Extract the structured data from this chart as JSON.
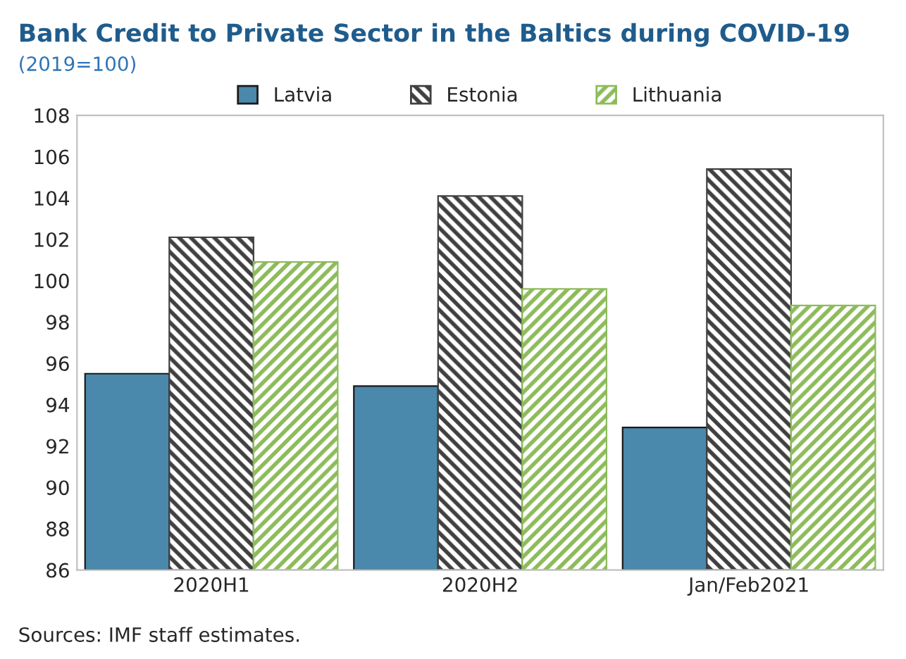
{
  "chart_data": {
    "type": "bar",
    "title": "Bank Credit to Private Sector in the Baltics during COVID-19",
    "subtitle": "(2019=100)",
    "categories": [
      "2020H1",
      "2020H2",
      "Jan/Feb2021"
    ],
    "series": [
      {
        "name": "Latvia",
        "color": "#4a89ab",
        "values": [
          95.5,
          94.9,
          92.9
        ]
      },
      {
        "name": "Estonia",
        "color": "#404040",
        "values": [
          102.1,
          104.1,
          105.4
        ]
      },
      {
        "name": "Lithuania",
        "color": "#8dbb5a",
        "values": [
          100.9,
          99.6,
          98.8
        ]
      }
    ],
    "ylim": [
      86,
      108
    ],
    "yticks": [
      86,
      88,
      90,
      92,
      94,
      96,
      98,
      100,
      102,
      104,
      106,
      108
    ],
    "legend": "top",
    "grid": false,
    "annotations": [
      "Sources: IMF staff estimates."
    ]
  }
}
